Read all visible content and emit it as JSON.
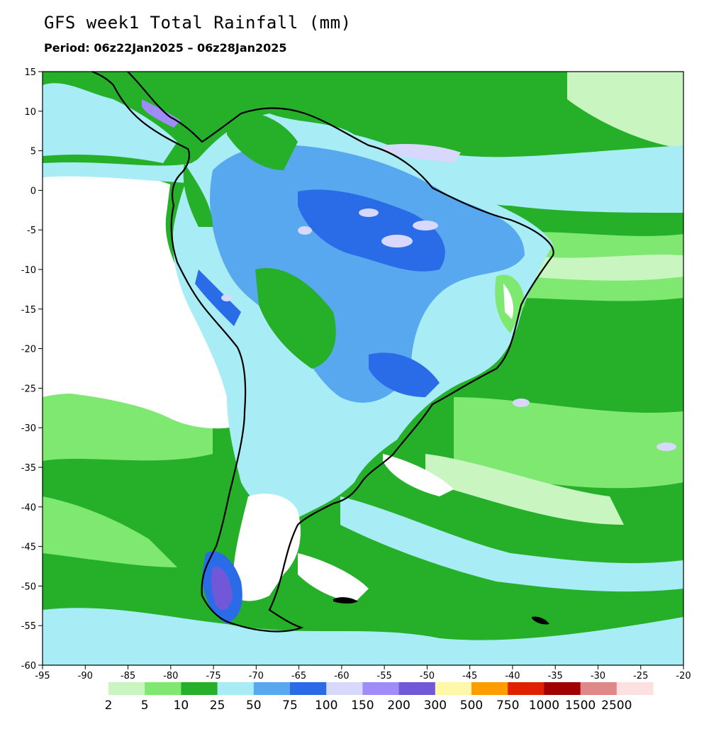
{
  "title": "GFS week1 Total Rainfall (mm)",
  "subtitle": "Period: 06z22Jan2025 – 06z28Jan2025",
  "map": {
    "lon_range": [
      -95,
      -20
    ],
    "lat_range": [
      -60,
      15
    ],
    "lon_ticks": [
      "-95",
      "-90",
      "-85",
      "-80",
      "-75",
      "-70",
      "-65",
      "-60",
      "-55",
      "-50",
      "-45",
      "-40",
      "-35",
      "-30",
      "-25",
      "-20"
    ],
    "lat_ticks": [
      "15",
      "10",
      "5",
      "0",
      "-5",
      "-10",
      "-15",
      "-20",
      "-25",
      "-30",
      "-35",
      "-40",
      "-45",
      "-50",
      "-55",
      "-60"
    ]
  },
  "legend": {
    "colors": [
      "#c8f5c0",
      "#7ee870",
      "#26b02a",
      "#a8ecf6",
      "#58a8f0",
      "#2a6ce8",
      "#d8d8fc",
      "#a08cf8",
      "#7058d8",
      "#fff8a8",
      "#ff9c00",
      "#e02000",
      "#a00000",
      "#e08888",
      "#fde0e0"
    ],
    "labels": [
      "2",
      "5",
      "10",
      "25",
      "50",
      "75",
      "100",
      "150",
      "200",
      "300",
      "500",
      "750",
      "1000",
      "1500",
      "2500"
    ]
  }
}
